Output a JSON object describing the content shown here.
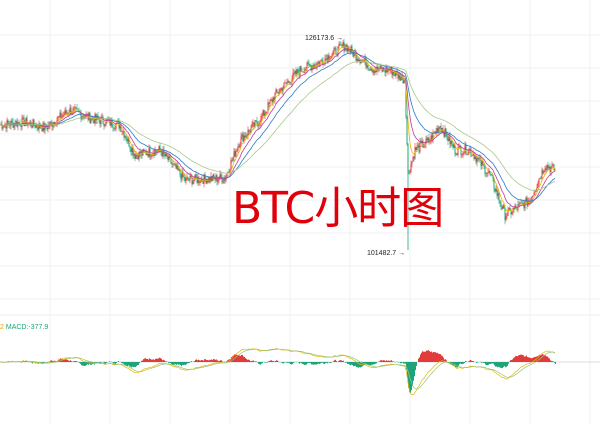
{
  "chart_data": {
    "type": "candlestick",
    "title": "BTC小时图",
    "high_label": "126173.6",
    "low_label": "101482.7",
    "y_range": [
      101482.7,
      126173.6
    ],
    "close_keypoints": [
      [
        0,
        116084
      ],
      [
        25,
        116440
      ],
      [
        45,
        115728
      ],
      [
        70,
        117864
      ],
      [
        90,
        116915
      ],
      [
        120,
        116084
      ],
      [
        135,
        112523
      ],
      [
        160,
        113117
      ],
      [
        185,
        109555
      ],
      [
        225,
        109793
      ],
      [
        240,
        114304
      ],
      [
        260,
        116677
      ],
      [
        275,
        119645
      ],
      [
        300,
        122612
      ],
      [
        320,
        123562
      ],
      [
        345,
        125580
      ],
      [
        355,
        124393
      ],
      [
        375,
        122612
      ],
      [
        390,
        122612
      ],
      [
        405,
        121425
      ],
      [
        408,
        110149
      ],
      [
        415,
        113117
      ],
      [
        430,
        114304
      ],
      [
        440,
        116084
      ],
      [
        455,
        113117
      ],
      [
        470,
        113117
      ],
      [
        490,
        110149
      ],
      [
        505,
        105401
      ],
      [
        530,
        107181
      ],
      [
        545,
        111336
      ],
      [
        555,
        110743
      ]
    ],
    "moving_averages": [
      {
        "color": "#e6b800"
      },
      {
        "color": "#c0399b"
      },
      {
        "color": "#2b7bc4"
      },
      {
        "color": "#a8c98a"
      }
    ],
    "up_color": "#e23b3b",
    "down_color": "#1fa37a",
    "macd": {
      "prefix": "2",
      "label": "MACD:-377.9",
      "prefix_color": "#e6a000",
      "label_color": "#1fa37a"
    },
    "grid": true
  }
}
